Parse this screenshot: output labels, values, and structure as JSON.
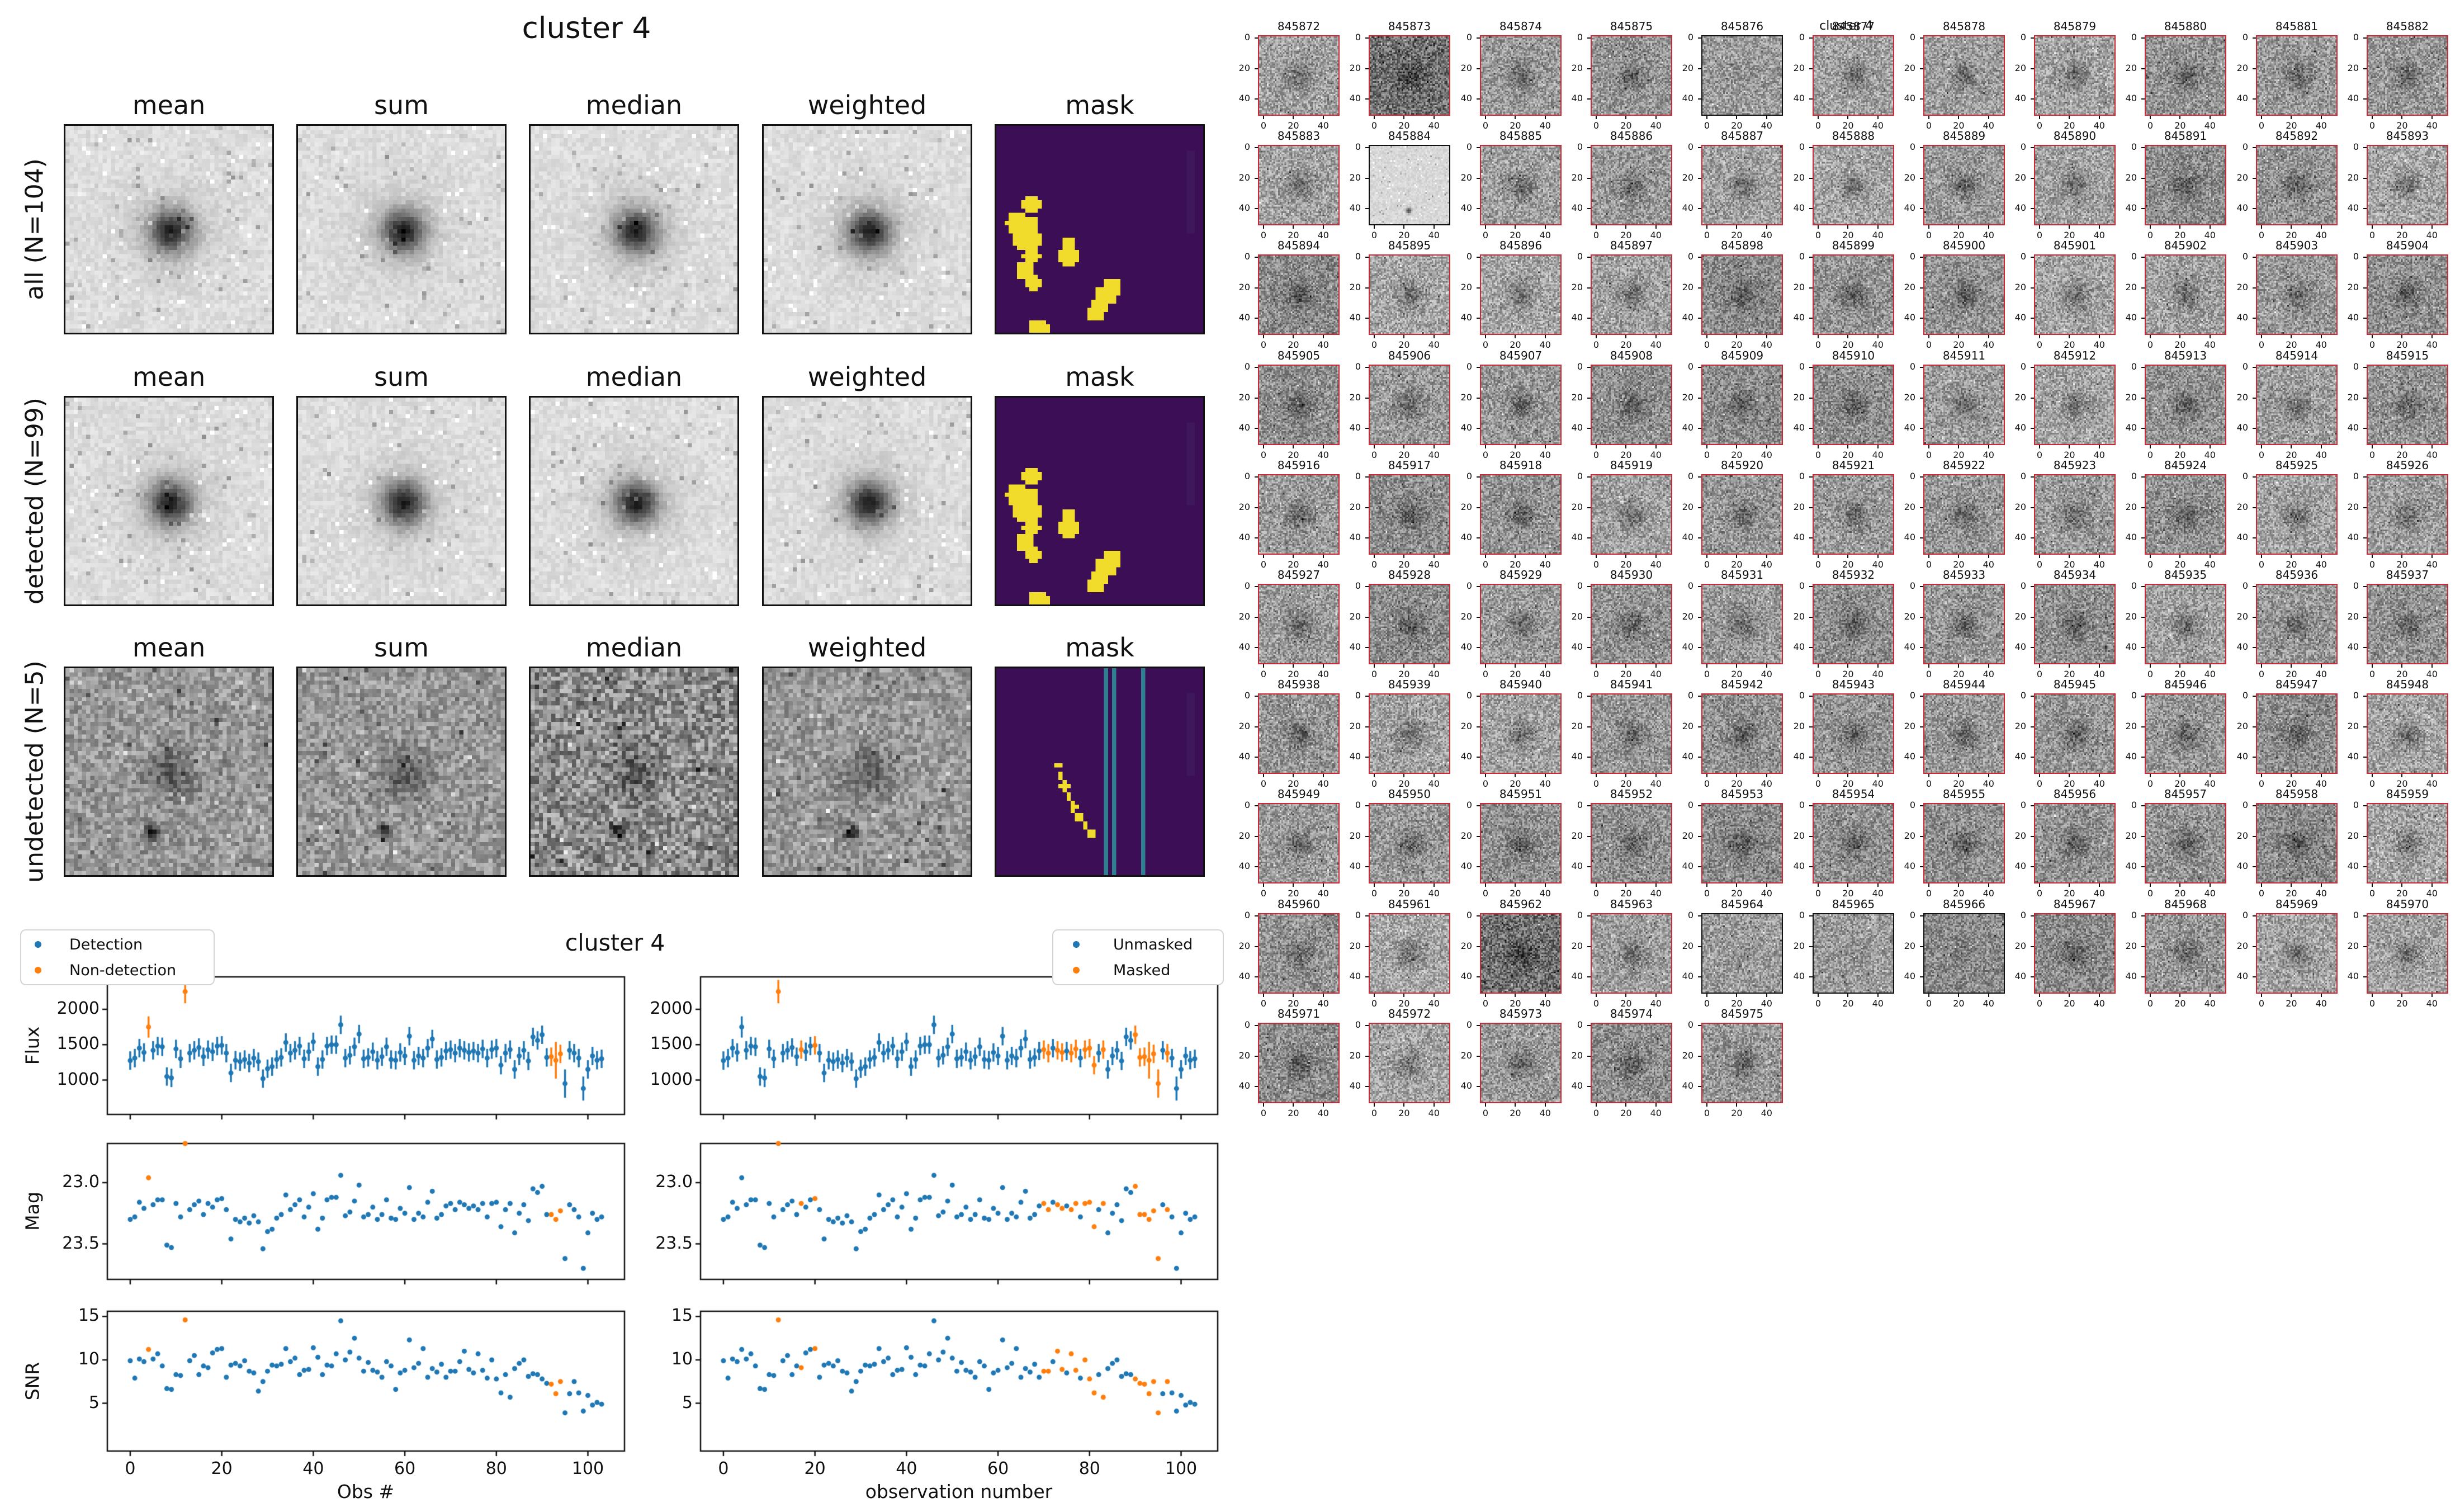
{
  "left_figure": {
    "title": "cluster 4",
    "column_headers": [
      "mean",
      "sum",
      "median",
      "weighted",
      "mask"
    ],
    "rows": [
      {
        "label": "all (N=104)"
      },
      {
        "label": "detected (N=99)"
      },
      {
        "label": "undetected (N=5)"
      }
    ]
  },
  "bottom_figure": {
    "title": "cluster 4",
    "ylabels": [
      "Flux",
      "Mag",
      "SNR"
    ],
    "xlabel_left": "Obs #",
    "xlabel_right": "observation number",
    "legend_left": [
      "Detection",
      "Non-detection"
    ],
    "legend_right": [
      "Unmasked",
      "Masked"
    ]
  },
  "right_figure": {
    "title": "cluster 4",
    "axis_ticks": [
      0,
      20,
      40
    ],
    "tile_ids": [
      845872,
      845873,
      845874,
      845875,
      845876,
      845877,
      845878,
      845879,
      845880,
      845881,
      845882,
      845883,
      845884,
      845885,
      845886,
      845887,
      845888,
      845889,
      845890,
      845891,
      845892,
      845893,
      845894,
      845895,
      845896,
      845897,
      845898,
      845899,
      845900,
      845901,
      845902,
      845903,
      845904,
      845905,
      845906,
      845907,
      845908,
      845909,
      845910,
      845911,
      845912,
      845913,
      845914,
      845915,
      845916,
      845917,
      845918,
      845919,
      845920,
      845921,
      845922,
      845923,
      845924,
      845925,
      845926,
      845927,
      845928,
      845929,
      845930,
      845931,
      845932,
      845933,
      845934,
      845935,
      845936,
      845937,
      845938,
      845939,
      845940,
      845941,
      845942,
      845943,
      845944,
      845945,
      845946,
      845947,
      845948,
      845949,
      845950,
      845951,
      845952,
      845953,
      845954,
      845955,
      845956,
      845957,
      845958,
      845959,
      845960,
      845961,
      845962,
      845963,
      845964,
      845965,
      845966,
      845967,
      845968,
      845969,
      845970,
      845971,
      845972,
      845973,
      845974,
      845975
    ],
    "undetected_ids": [
      845876,
      845884,
      845964,
      845965,
      845966
    ],
    "pale_ids": [
      845884
    ],
    "dark_ids": [
      845873,
      845962
    ]
  },
  "colors": {
    "point_blue": "#1f77b4",
    "point_orange": "#ff7f0e",
    "mask_bg": "#3c0e56",
    "mask_yellow": "#f2dc2b",
    "mask_teal": "#2e7f8f",
    "tile_border_red": "#cc2936",
    "tile_border_black": "#111111"
  },
  "chart_data": {
    "type": "scatter",
    "title": "cluster 4",
    "x_is_index": true,
    "xlim": [
      -5,
      108
    ],
    "x_ticks": [
      0,
      20,
      40,
      60,
      80,
      100
    ],
    "panels": [
      {
        "ylabel": "Flux",
        "y_ticks": [
          1000,
          1500,
          2000
        ],
        "ylim": [
          514,
          2458
        ]
      },
      {
        "ylabel": "Mag",
        "y_ticks": [
          "23.0",
          "23.5"
        ],
        "ylim": [
          23.79,
          22.68
        ],
        "inverted": true
      },
      {
        "ylabel": "SNR",
        "y_ticks": [
          5,
          10,
          15
        ],
        "ylim": [
          -0.5,
          15.6
        ]
      }
    ],
    "flux": [
      1275,
      1310,
      1450,
      1390,
      1750,
      1420,
      1480,
      1470,
      1050,
      1030,
      1440,
      1300,
      2250,
      1380,
      1420,
      1460,
      1330,
      1430,
      1400,
      1480,
      1490,
      1380,
      1100,
      1280,
      1260,
      1290,
      1240,
      1310,
      1260,
      1020,
      1160,
      1190,
      1290,
      1320,
      1530,
      1380,
      1420,
      1480,
      1300,
      1400,
      1540,
      1190,
      1290,
      1480,
      1500,
      1500,
      1780,
      1310,
      1350,
      1470,
      1650,
      1300,
      1320,
      1400,
      1280,
      1330,
      1470,
      1290,
      1280,
      1390,
      1340,
      1620,
      1280,
      1340,
      1310,
      1450,
      1580,
      1290,
      1320,
      1410,
      1430,
      1380,
      1450,
      1420,
      1390,
      1410,
      1380,
      1440,
      1310,
      1430,
      1450,
      1210,
      1380,
      1430,
      1150,
      1340,
      1420,
      1270,
      1610,
      1560,
      1640,
      1320,
      1330,
      1280,
      1370,
      950,
      1420,
      1380,
      1310,
      880,
      1150,
      1340,
      1280,
      1300
    ],
    "flux_err_default": 130,
    "flux_err_overrides": {
      "4": 150,
      "12": 165,
      "93": 260,
      "95": 200,
      "99": 170
    },
    "mag": [
      23.3,
      23.28,
      23.16,
      23.21,
      22.96,
      23.18,
      23.14,
      23.14,
      23.51,
      23.53,
      23.17,
      23.28,
      22.68,
      23.22,
      23.18,
      23.15,
      23.26,
      23.17,
      23.2,
      23.14,
      23.13,
      23.22,
      23.46,
      23.3,
      23.32,
      23.29,
      23.33,
      23.27,
      23.32,
      23.54,
      23.4,
      23.38,
      23.29,
      23.26,
      23.1,
      23.22,
      23.18,
      23.14,
      23.28,
      23.2,
      23.09,
      23.38,
      23.29,
      23.14,
      23.12,
      23.12,
      22.94,
      23.27,
      23.24,
      23.15,
      23.02,
      23.28,
      23.26,
      23.2,
      23.3,
      23.26,
      23.14,
      23.29,
      23.3,
      23.21,
      23.25,
      23.04,
      23.3,
      23.25,
      23.28,
      23.16,
      23.07,
      23.29,
      23.26,
      23.19,
      23.17,
      23.22,
      23.16,
      23.18,
      23.21,
      23.19,
      23.22,
      23.17,
      23.28,
      23.17,
      23.16,
      23.36,
      23.22,
      23.17,
      23.41,
      23.25,
      23.18,
      23.31,
      23.05,
      23.08,
      23.03,
      23.26,
      23.26,
      23.3,
      23.23,
      23.62,
      23.18,
      23.22,
      23.28,
      23.7,
      23.41,
      23.25,
      23.3,
      23.28
    ],
    "snr": [
      9.9,
      7.9,
      10.1,
      9.8,
      11.2,
      10.1,
      10.7,
      9.3,
      6.7,
      6.6,
      8.3,
      8.2,
      14.6,
      9.9,
      10.5,
      8.3,
      9.3,
      9.1,
      10.8,
      11.2,
      11.3,
      8.0,
      9.4,
      9.6,
      9.3,
      9.9,
      8.7,
      8.5,
      6.4,
      7.5,
      8.7,
      9.4,
      9.3,
      9.5,
      11.3,
      9.8,
      10.2,
      8.3,
      8.8,
      8.9,
      11.4,
      10.3,
      8.3,
      9.4,
      9.3,
      10.7,
      14.5,
      10.0,
      10.9,
      12.5,
      10.2,
      8.7,
      9.7,
      8.8,
      8.6,
      8.0,
      9.8,
      9.3,
      6.6,
      8.5,
      8.8,
      12.3,
      9.1,
      9.6,
      11.3,
      8.0,
      9.0,
      8.6,
      9.5,
      8.0,
      8.7,
      8.7,
      9.8,
      11.0,
      8.9,
      8.5,
      10.7,
      8.8,
      7.9,
      10.0,
      7.8,
      6.2,
      8.3,
      5.7,
      9.0,
      9.6,
      10.0,
      8.1,
      8.4,
      8.3,
      7.8,
      7.3,
      7.2,
      6.1,
      7.5,
      3.9,
      6.1,
      7.5,
      6.2,
      4.1,
      5.9,
      4.8,
      5.1,
      4.9
    ],
    "nondetection_indices": [
      4,
      12,
      92,
      93,
      94
    ],
    "masked_indices": [
      12,
      17,
      20,
      70,
      71,
      73,
      74,
      76,
      77,
      79,
      80,
      81,
      83,
      90,
      91,
      92,
      93,
      94,
      95,
      97
    ]
  }
}
